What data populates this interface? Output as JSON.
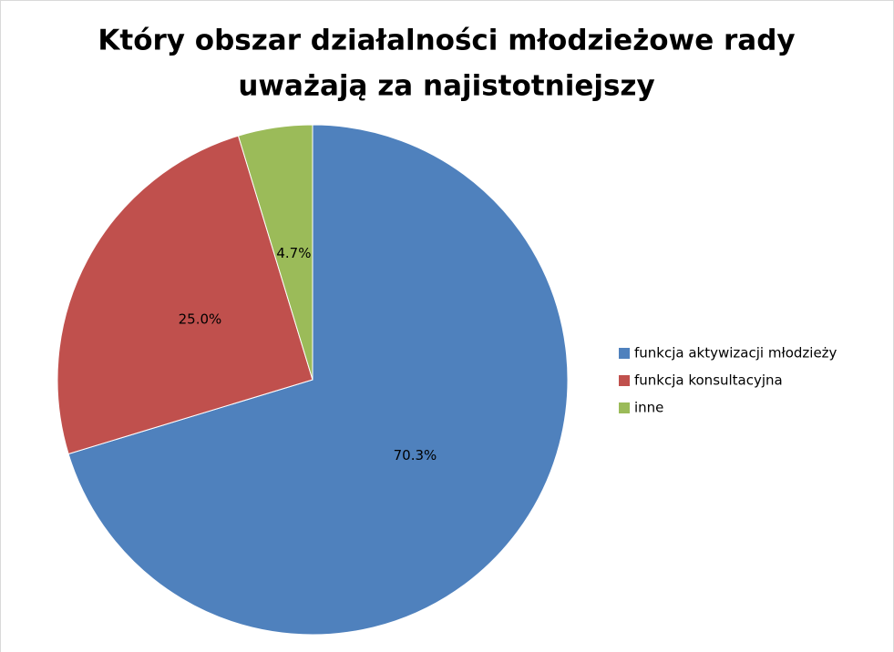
{
  "chart_data": {
    "type": "pie",
    "title": [
      "Który obszar działalności młodzieżowe rady",
      "uważają za najistotniejszy"
    ],
    "categories": [
      "funkcja aktywizacji młodzieży",
      "funkcja konsultacyjna",
      "inne"
    ],
    "values": [
      70.3,
      25,
      4.7
    ],
    "value_labels": [
      "70.3%",
      "25.0%",
      "4.7%"
    ],
    "colors": [
      "#4f81bd",
      "#c0504d",
      "#9bbb59"
    ],
    "legend": "right"
  }
}
